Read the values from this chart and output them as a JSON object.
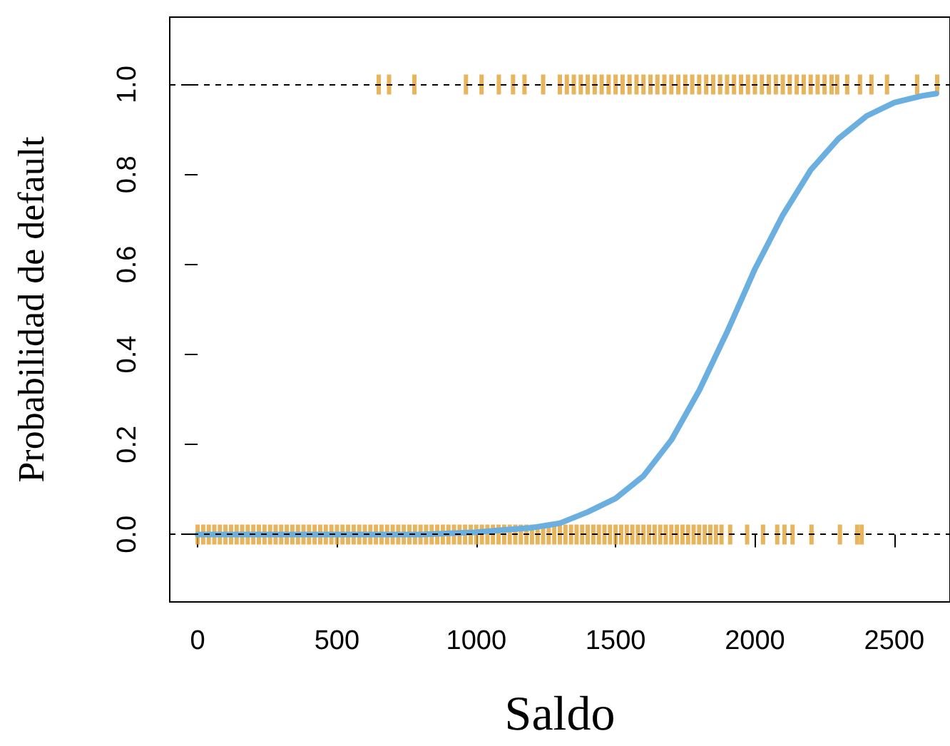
{
  "chart_data": {
    "type": "line",
    "xlabel": "Saldo",
    "ylabel": "Probabilidad de default",
    "xlim": [
      -100,
      2700
    ],
    "xticks": [
      0,
      500,
      1000,
      1500,
      2000,
      2500
    ],
    "ylim": [
      -0.15,
      1.15
    ],
    "yticks": [
      {
        "value": 0,
        "label": "0.0"
      },
      {
        "value": 0.2,
        "label": "0.2"
      },
      {
        "value": 0.4,
        "label": "0.4"
      },
      {
        "value": 0.6,
        "label": "0.6"
      },
      {
        "value": 0.8,
        "label": "0.8"
      },
      {
        "value": 1,
        "label": "1.0"
      }
    ],
    "ref_lines": [
      {
        "axis": "y",
        "value": 0,
        "color": "#000000",
        "line_style": "dashed"
      },
      {
        "axis": "y",
        "value": 1,
        "color": "#000000",
        "line_style": "dashed"
      }
    ],
    "series": [
      {
        "type": "scatter",
        "color": "#e0a234",
        "x": [
          0,
          20,
          40,
          60,
          80,
          100,
          120,
          140,
          160,
          180,
          200,
          220,
          240,
          260,
          280,
          300,
          320,
          340,
          360,
          380,
          400,
          420,
          440,
          460,
          480,
          500,
          520,
          540,
          560,
          580,
          600,
          620,
          640,
          660,
          680,
          700,
          720,
          740,
          760,
          780,
          800,
          820,
          840,
          860,
          880,
          900,
          920,
          940,
          960,
          980,
          1000,
          1020,
          1040,
          1060,
          1080,
          1100,
          1120,
          1140,
          1160,
          1180,
          1200,
          1220,
          1240,
          1260,
          1280,
          1300,
          1320,
          1340,
          1360,
          1380,
          1400,
          1420,
          1440,
          1460,
          1480,
          1500,
          1520,
          1540,
          1560,
          1580,
          1600,
          1620,
          1640,
          1660,
          1680,
          1700,
          1720,
          1740,
          1760,
          1780,
          1800,
          1820,
          1840,
          1860,
          1880,
          1911,
          1972,
          2029,
          2080,
          2106,
          2135,
          2203,
          2305,
          2367,
          2383
        ],
        "values": [
          0,
          0,
          0,
          0,
          0,
          0,
          0,
          0,
          0,
          0,
          0,
          0,
          0,
          0,
          0,
          0,
          0,
          0,
          0,
          0,
          0,
          0,
          0,
          0,
          0,
          0,
          0,
          0,
          0,
          0,
          0,
          0,
          0,
          0,
          0,
          0,
          0,
          0,
          0,
          0,
          0,
          0,
          0,
          0,
          0,
          0,
          0,
          0,
          0,
          0,
          0,
          0,
          0,
          0,
          0,
          0,
          0,
          0,
          0,
          0,
          0,
          0,
          0,
          0,
          0,
          0,
          0,
          0,
          0,
          0,
          0,
          0,
          0,
          0,
          0,
          0,
          0,
          0,
          0,
          0,
          0,
          0,
          0,
          0,
          0,
          0,
          0,
          0,
          0,
          0,
          0,
          0,
          0,
          0,
          0,
          0,
          0,
          0,
          0,
          0,
          0,
          0,
          0,
          0,
          0
        ]
      },
      {
        "type": "scatter",
        "color": "#e0a234",
        "x": [
          650,
          687,
          778,
          963,
          1019,
          1081,
          1132,
          1173,
          1240,
          1300,
          1325,
          1350,
          1375,
          1400,
          1425,
          1450,
          1475,
          1500,
          1525,
          1550,
          1575,
          1600,
          1625,
          1650,
          1675,
          1700,
          1725,
          1750,
          1775,
          1800,
          1825,
          1850,
          1875,
          1900,
          1925,
          1950,
          1975,
          2000,
          2025,
          2050,
          2075,
          2100,
          2125,
          2150,
          2175,
          2200,
          2225,
          2250,
          2275,
          2295,
          2331,
          2377,
          2418,
          2474,
          2582,
          2654
        ],
        "values": [
          1,
          1,
          1,
          1,
          1,
          1,
          1,
          1,
          1,
          1,
          1,
          1,
          1,
          1,
          1,
          1,
          1,
          1,
          1,
          1,
          1,
          1,
          1,
          1,
          1,
          1,
          1,
          1,
          1,
          1,
          1,
          1,
          1,
          1,
          1,
          1,
          1,
          1,
          1,
          1,
          1,
          1,
          1,
          1,
          1,
          1,
          1,
          1,
          1,
          1,
          1,
          1,
          1,
          1,
          1,
          1
        ]
      },
      {
        "color": "#6aafe0",
        "x": [
          0,
          500,
          800,
          1000,
          1100,
          1200,
          1300,
          1400,
          1500,
          1600,
          1700,
          1800,
          1900,
          2000,
          2100,
          2200,
          2300,
          2400,
          2500,
          2600,
          2650
        ],
        "values": [
          0,
          0,
          0,
          0.005,
          0.01,
          0.015,
          0.025,
          0.05,
          0.08,
          0.13,
          0.21,
          0.32,
          0.45,
          0.59,
          0.71,
          0.81,
          0.88,
          0.93,
          0.96,
          0.975,
          0.98
        ]
      }
    ]
  }
}
